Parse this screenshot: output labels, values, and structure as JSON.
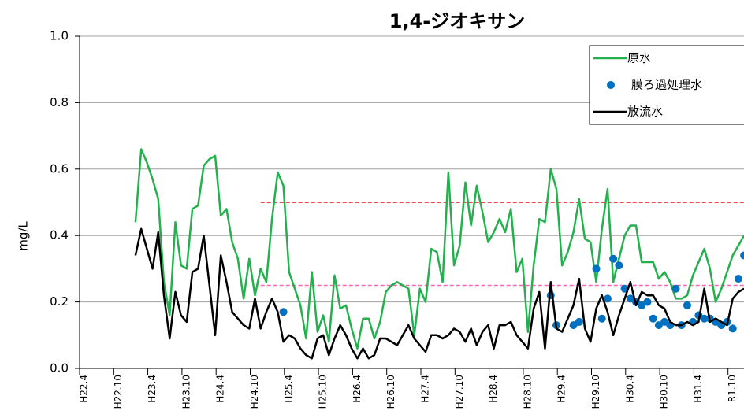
{
  "chart_data": {
    "type": "line",
    "title": "1,4-ジオキサン",
    "y_label": "mg/L",
    "ylim": [
      0,
      1.0
    ],
    "yticks": [
      {
        "value": 0,
        "label": "0.0"
      },
      0.2,
      0.4,
      0.6,
      0.8,
      {
        "value": 1,
        "label": "1.0"
      }
    ],
    "xticks": [
      "H22.4",
      "H22.10",
      "H23.4",
      "H23.10",
      "H24.4",
      "H24.10",
      "H25.4",
      "H25.10",
      "H26.4",
      "H26.10",
      "H27.4",
      "H27.10",
      "H28.4",
      "H28.10",
      "H29.4",
      "H29.10",
      "H30.4",
      "H30.10",
      "H31.4",
      "R1.10"
    ],
    "grid": true,
    "legend": "upper right",
    "x": [
      "H23.1",
      "H23.2",
      "H23.3",
      "H23.4",
      "H23.5",
      "H23.6",
      "H23.7",
      "H23.8",
      "H23.9",
      "H23.10",
      "H23.11",
      "H23.12",
      "H24.1",
      "H24.2",
      "H24.3",
      "H24.4",
      "H24.5",
      "H24.6",
      "H24.7",
      "H24.8",
      "H24.9",
      "H24.10",
      "H24.11",
      "H24.12",
      "H25.1",
      "H25.2",
      "H25.3",
      "H25.4",
      "H25.5",
      "H25.6",
      "H25.7",
      "H25.8",
      "H25.9",
      "H25.10",
      "H25.11",
      "H25.12",
      "H26.1",
      "H26.2",
      "H26.3",
      "H26.4",
      "H26.5",
      "H26.6",
      "H26.7",
      "H26.8",
      "H26.9",
      "H26.10",
      "H26.11",
      "H26.12",
      "H27.1",
      "H27.2",
      "H27.3",
      "H27.4",
      "H27.5",
      "H27.6",
      "H27.7",
      "H27.8",
      "H27.9",
      "H27.10",
      "H27.11",
      "H27.12",
      "H28.1",
      "H28.2",
      "H28.3",
      "H28.4",
      "H28.5",
      "H28.6",
      "H28.7",
      "H28.8",
      "H28.9",
      "H28.10",
      "H28.11",
      "H28.12",
      "H29.1",
      "H29.2",
      "H29.3",
      "H29.4",
      "H29.5",
      "H29.6",
      "H29.7",
      "H29.8",
      "H29.9",
      "H29.10",
      "H29.11",
      "H29.12",
      "H30.1",
      "H30.2",
      "H30.3",
      "H30.4",
      "H30.5",
      "H30.6",
      "H30.7",
      "H30.8",
      "H30.9",
      "H30.10",
      "H30.11",
      "H30.12",
      "H31.1",
      "H31.2",
      "H31.3",
      "H31.4",
      "R1.5",
      "R1.6",
      "R1.7",
      "R1.8",
      "R1.9",
      "R1.10",
      "R1.11",
      "R1.12"
    ],
    "series": [
      {
        "name": "原水",
        "color": "#22b14c",
        "style": "line",
        "values": [
          0.44,
          0.66,
          0.62,
          0.57,
          0.51,
          0.26,
          0.16,
          0.44,
          0.31,
          0.3,
          0.48,
          0.49,
          0.61,
          0.63,
          0.64,
          0.46,
          0.48,
          0.38,
          0.33,
          0.21,
          0.33,
          0.22,
          0.3,
          0.26,
          0.45,
          0.59,
          0.55,
          0.29,
          0.24,
          0.19,
          0.09,
          0.29,
          0.11,
          0.16,
          0.08,
          0.28,
          0.18,
          0.19,
          0.12,
          0.06,
          0.15,
          0.15,
          0.09,
          0.14,
          0.23,
          0.25,
          0.26,
          0.25,
          0.24,
          0.1,
          0.24,
          0.2,
          0.36,
          0.35,
          0.26,
          0.59,
          0.31,
          0.37,
          0.56,
          0.43,
          0.55,
          0.47,
          0.38,
          0.41,
          0.45,
          0.41,
          0.48,
          0.29,
          0.33,
          0.11,
          0.31,
          0.45,
          0.44,
          0.6,
          0.54,
          0.31,
          0.35,
          0.41,
          0.51,
          0.39,
          0.38,
          0.26,
          0.42,
          0.54,
          0.26,
          0.33,
          0.4,
          0.43,
          0.43,
          0.32,
          0.32,
          0.32,
          0.27,
          0.29,
          0.26,
          0.21,
          0.21,
          0.22,
          0.28,
          0.32,
          0.36,
          0.3,
          0.2,
          0.24,
          0.29,
          0.34,
          0.37,
          0.4
        ]
      },
      {
        "name": "膜ろ過処理水",
        "color": "#0070c0",
        "style": "marker",
        "x": [
          "H25.3",
          "H29.2",
          "H29.3",
          "H29.6",
          "H29.7",
          "H29.10",
          "H29.11",
          "H29.12",
          "H30.1",
          "H30.2",
          "H30.3",
          "H30.4",
          "H30.5",
          "H30.6",
          "H30.7",
          "H30.8",
          "H30.9",
          "H30.10",
          "H30.11",
          "H30.12",
          "H31.1",
          "H31.2",
          "H31.3",
          "H31.4",
          "R1.5",
          "R1.6",
          "R1.7",
          "R1.8",
          "R1.9",
          "R1.10",
          "R1.11",
          "R1.12"
        ],
        "values": [
          0.17,
          0.22,
          0.13,
          0.13,
          0.14,
          0.3,
          0.15,
          0.21,
          0.33,
          0.31,
          0.24,
          0.21,
          0.2,
          0.19,
          0.2,
          0.15,
          0.13,
          0.14,
          0.13,
          0.24,
          0.13,
          0.19,
          0.14,
          0.16,
          0.15,
          0.15,
          0.14,
          0.13,
          0.14,
          0.12,
          0.27,
          0.34
        ]
      },
      {
        "name": "放流水",
        "color": "#000000",
        "style": "line",
        "values": [
          0.34,
          0.42,
          0.36,
          0.3,
          0.41,
          0.22,
          0.09,
          0.23,
          0.16,
          0.14,
          0.29,
          0.3,
          0.4,
          0.25,
          0.1,
          0.34,
          0.26,
          0.17,
          0.15,
          0.13,
          0.12,
          0.21,
          0.12,
          0.17,
          0.21,
          0.17,
          0.08,
          0.1,
          0.09,
          0.06,
          0.04,
          0.03,
          0.09,
          0.1,
          0.04,
          0.09,
          0.13,
          0.1,
          0.06,
          0.03,
          0.06,
          0.03,
          0.04,
          0.09,
          0.09,
          0.08,
          0.07,
          0.1,
          0.13,
          0.09,
          0.07,
          0.05,
          0.1,
          0.1,
          0.09,
          0.1,
          0.12,
          0.11,
          0.08,
          0.12,
          0.07,
          0.11,
          0.13,
          0.06,
          0.13,
          0.13,
          0.14,
          0.1,
          0.08,
          0.06,
          0.18,
          0.23,
          0.06,
          0.26,
          0.12,
          0.11,
          0.15,
          0.19,
          0.27,
          0.12,
          0.08,
          0.18,
          0.22,
          0.17,
          0.1,
          0.16,
          0.21,
          0.26,
          0.19,
          0.23,
          0.22,
          0.22,
          0.19,
          0.18,
          0.14,
          0.13,
          0.13,
          0.14,
          0.13,
          0.14,
          0.24,
          0.14,
          0.15,
          0.14,
          0.13,
          0.21,
          0.23,
          0.24
        ]
      }
    ],
    "reference_lines": [
      {
        "value": 0.5,
        "color": "#ff0000",
        "start": "H24.11"
      },
      {
        "value": 0.25,
        "color": "#ff66b3",
        "start": "H24.11"
      }
    ]
  }
}
